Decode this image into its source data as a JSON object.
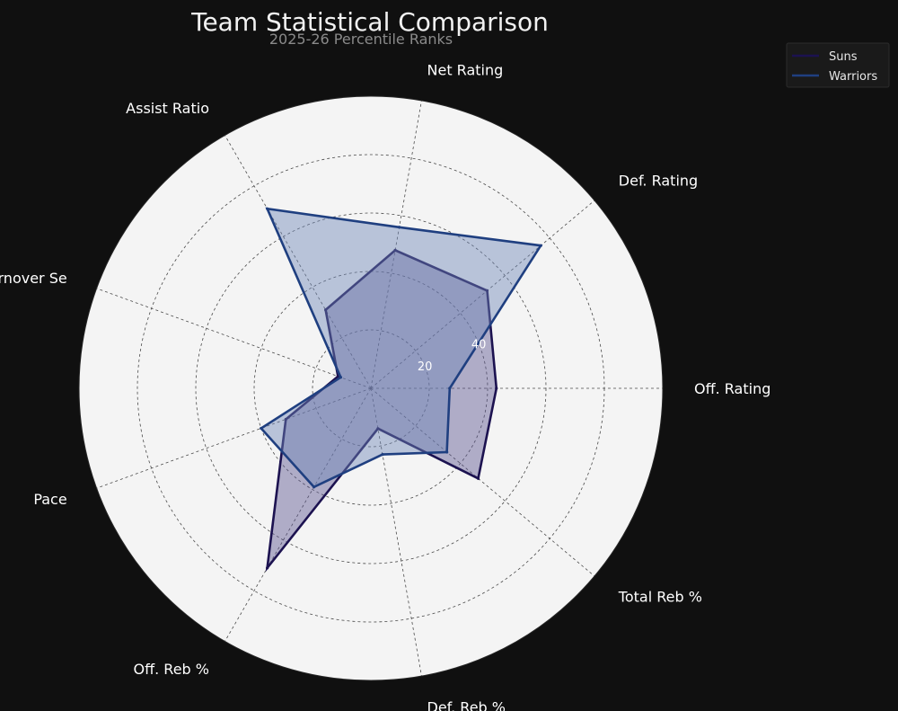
{
  "chart_data": {
    "type": "radar",
    "title": "Team Statistical Comparison",
    "subtitle": "2025-26 Percentile Ranks",
    "axes": [
      "Off. Rating",
      "Def. Rating",
      "Net Rating",
      "Assist Ratio",
      "Turnover Se",
      "Pace",
      "Off. Reb %",
      "Def. Reb %",
      "Total Reb %"
    ],
    "radial_ticks": [
      "20",
      "40"
    ],
    "rmax": 100,
    "grid": true,
    "legend_position": "top-right",
    "series": [
      {
        "name": "Suns",
        "color": "#1c1250",
        "fill": "#5a5590",
        "values": [
          43,
          52,
          48,
          31,
          12,
          31,
          71,
          14,
          48
        ]
      },
      {
        "name": "Warriors",
        "color": "#1f3f80",
        "fill": "#6f88b8",
        "values": [
          27,
          76,
          56,
          71,
          11,
          40,
          39,
          23,
          34
        ]
      }
    ]
  }
}
